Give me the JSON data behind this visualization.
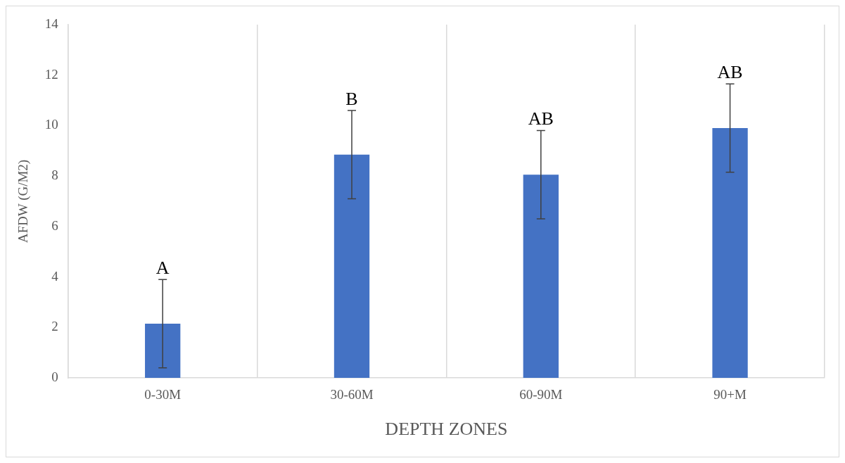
{
  "chart_data": {
    "type": "bar",
    "xlabel": "DEPTH ZONES",
    "ylabel": "AFDW (G/M2)",
    "categories": [
      "0-30M",
      "30-60M",
      "60-90M",
      "90+M"
    ],
    "values": [
      2.15,
      8.85,
      8.05,
      9.9
    ],
    "errors": [
      1.75,
      1.75,
      1.75,
      1.75
    ],
    "color": "#4472c4",
    "ylim": [
      0,
      14
    ],
    "yticks": [
      0,
      2,
      4,
      6,
      8,
      10,
      12,
      14
    ],
    "grid": "x",
    "legend": false,
    "annotations": [
      {
        "text": "A",
        "x": "0-30M",
        "y": 3.9
      },
      {
        "text": "B",
        "x": "30-60M",
        "y": 10.6
      },
      {
        "text": "AB",
        "x": "60-90M",
        "y": 9.8
      },
      {
        "text": "AB",
        "x": "90+M",
        "y": 11.65
      }
    ]
  }
}
